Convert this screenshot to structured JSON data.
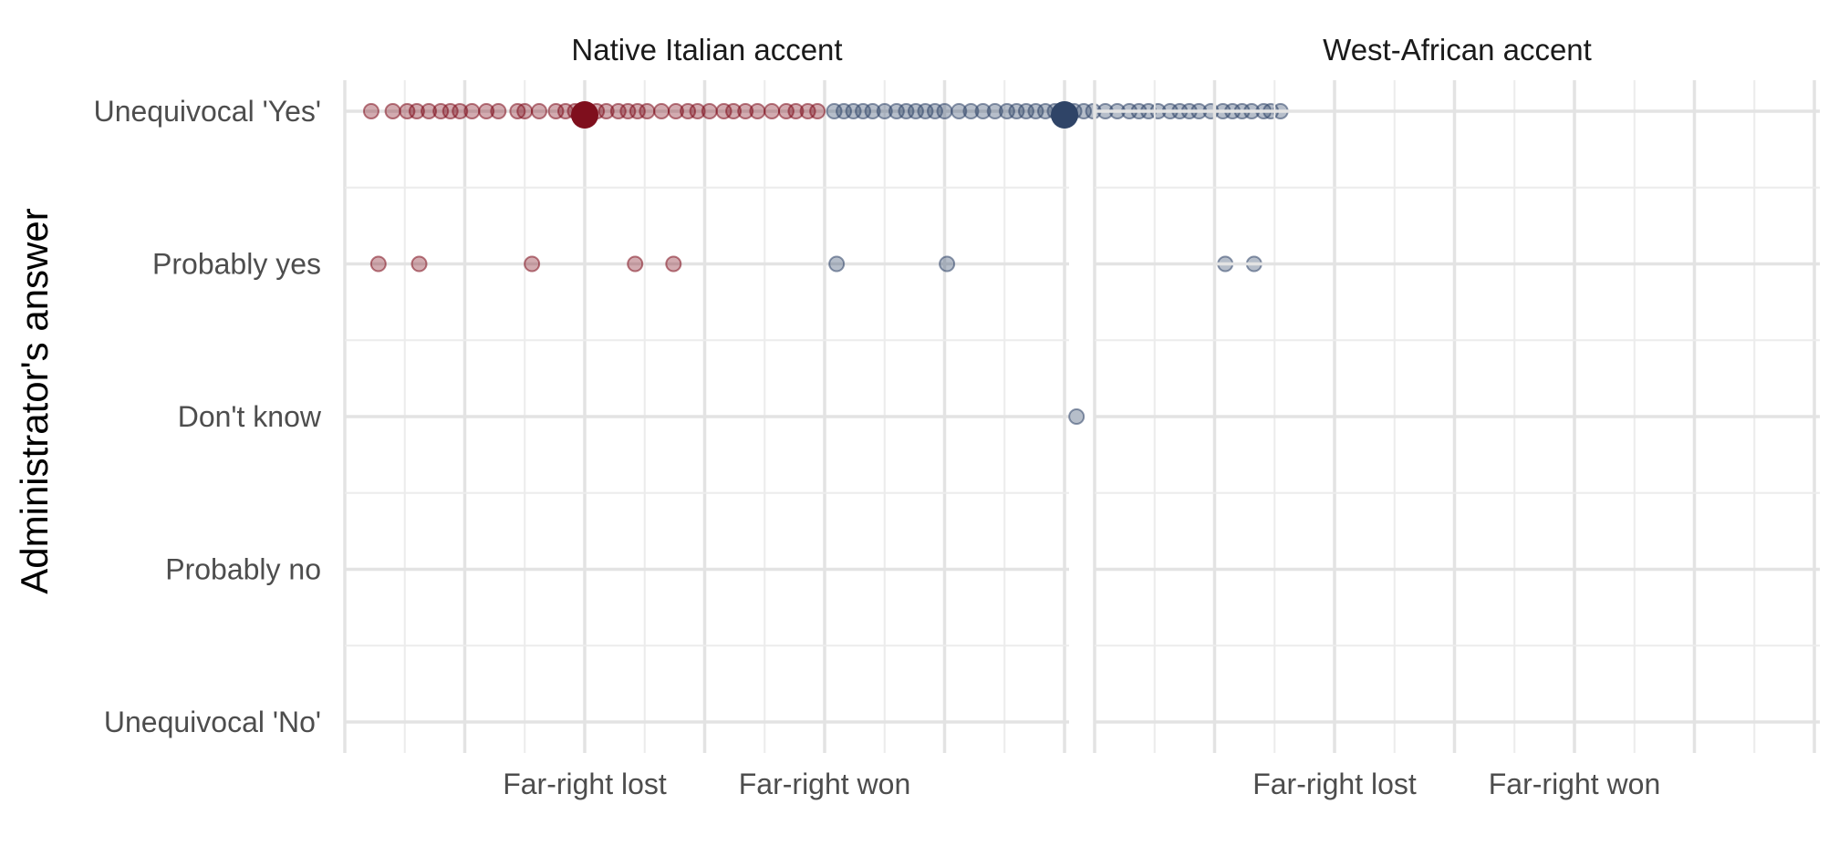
{
  "chart_data": {
    "type": "scatter",
    "ylabel": "Administrator's answer",
    "xlabel": "",
    "y_categories": [
      "Unequivocal 'No'",
      "Probably no",
      "Don't know",
      "Probably yes",
      "Unequivocal 'Yes'"
    ],
    "x_categories": [
      "Far-right lost",
      "Far-right won"
    ],
    "grid": true,
    "legend": "none",
    "colors": {
      "far_right_lost": "#7f0f1d",
      "far_right_won": "#2f4467"
    },
    "facets": [
      {
        "title": "Native Italian accent",
        "series": [
          {
            "group": "Far-right lost",
            "color": "#7f0f1d",
            "points": [
              {
                "x": -0.89,
                "y": "Unequivocal 'Yes'"
              },
              {
                "x": -0.8,
                "y": "Unequivocal 'Yes'"
              },
              {
                "x": -0.74,
                "y": "Unequivocal 'Yes'"
              },
              {
                "x": -0.7,
                "y": "Unequivocal 'Yes'"
              },
              {
                "x": -0.65,
                "y": "Unequivocal 'Yes'"
              },
              {
                "x": -0.6,
                "y": "Unequivocal 'Yes'"
              },
              {
                "x": -0.56,
                "y": "Unequivocal 'Yes'"
              },
              {
                "x": -0.52,
                "y": "Unequivocal 'Yes'"
              },
              {
                "x": -0.47,
                "y": "Unequivocal 'Yes'"
              },
              {
                "x": -0.41,
                "y": "Unequivocal 'Yes'"
              },
              {
                "x": -0.36,
                "y": "Unequivocal 'Yes'"
              },
              {
                "x": -0.28,
                "y": "Unequivocal 'Yes'"
              },
              {
                "x": -0.25,
                "y": "Unequivocal 'Yes'"
              },
              {
                "x": -0.19,
                "y": "Unequivocal 'Yes'"
              },
              {
                "x": -0.12,
                "y": "Unequivocal 'Yes'"
              },
              {
                "x": -0.08,
                "y": "Unequivocal 'Yes'"
              },
              {
                "x": -0.04,
                "y": "Unequivocal 'Yes'"
              },
              {
                "x": 0.0,
                "y": "Unequivocal 'Yes'"
              },
              {
                "x": 0.05,
                "y": "Unequivocal 'Yes'"
              },
              {
                "x": 0.09,
                "y": "Unequivocal 'Yes'"
              },
              {
                "x": 0.14,
                "y": "Unequivocal 'Yes'"
              },
              {
                "x": 0.18,
                "y": "Unequivocal 'Yes'"
              },
              {
                "x": 0.22,
                "y": "Unequivocal 'Yes'"
              },
              {
                "x": 0.26,
                "y": "Unequivocal 'Yes'"
              },
              {
                "x": 0.32,
                "y": "Unequivocal 'Yes'"
              },
              {
                "x": 0.38,
                "y": "Unequivocal 'Yes'"
              },
              {
                "x": 0.43,
                "y": "Unequivocal 'Yes'"
              },
              {
                "x": 0.47,
                "y": "Unequivocal 'Yes'"
              },
              {
                "x": 0.52,
                "y": "Unequivocal 'Yes'"
              },
              {
                "x": 0.58,
                "y": "Unequivocal 'Yes'"
              },
              {
                "x": 0.62,
                "y": "Unequivocal 'Yes'"
              },
              {
                "x": 0.67,
                "y": "Unequivocal 'Yes'"
              },
              {
                "x": 0.72,
                "y": "Unequivocal 'Yes'"
              },
              {
                "x": 0.78,
                "y": "Unequivocal 'Yes'"
              },
              {
                "x": 0.84,
                "y": "Unequivocal 'Yes'"
              },
              {
                "x": 0.88,
                "y": "Unequivocal 'Yes'"
              },
              {
                "x": 0.93,
                "y": "Unequivocal 'Yes'"
              },
              {
                "x": 0.97,
                "y": "Unequivocal 'Yes'"
              },
              {
                "x": -0.86,
                "y": "Probably yes"
              },
              {
                "x": -0.69,
                "y": "Probably yes"
              },
              {
                "x": -0.22,
                "y": "Probably yes"
              },
              {
                "x": 0.21,
                "y": "Probably yes"
              },
              {
                "x": 0.37,
                "y": "Probably yes"
              }
            ],
            "mean": {
              "x": 0.0,
              "y": "Unequivocal 'Yes'"
            }
          },
          {
            "group": "Far-right won",
            "color": "#2f4467",
            "points": [
              {
                "x": 1.04,
                "y": "Unequivocal 'Yes'"
              },
              {
                "x": 1.08,
                "y": "Unequivocal 'Yes'"
              },
              {
                "x": 1.12,
                "y": "Unequivocal 'Yes'"
              },
              {
                "x": 1.16,
                "y": "Unequivocal 'Yes'"
              },
              {
                "x": 1.2,
                "y": "Unequivocal 'Yes'"
              },
              {
                "x": 1.25,
                "y": "Unequivocal 'Yes'"
              },
              {
                "x": 1.3,
                "y": "Unequivocal 'Yes'"
              },
              {
                "x": 1.34,
                "y": "Unequivocal 'Yes'"
              },
              {
                "x": 1.38,
                "y": "Unequivocal 'Yes'"
              },
              {
                "x": 1.42,
                "y": "Unequivocal 'Yes'"
              },
              {
                "x": 1.46,
                "y": "Unequivocal 'Yes'"
              },
              {
                "x": 1.5,
                "y": "Unequivocal 'Yes'"
              },
              {
                "x": 1.56,
                "y": "Unequivocal 'Yes'"
              },
              {
                "x": 1.61,
                "y": "Unequivocal 'Yes'"
              },
              {
                "x": 1.66,
                "y": "Unequivocal 'Yes'"
              },
              {
                "x": 1.71,
                "y": "Unequivocal 'Yes'"
              },
              {
                "x": 1.76,
                "y": "Unequivocal 'Yes'"
              },
              {
                "x": 1.8,
                "y": "Unequivocal 'Yes'"
              },
              {
                "x": 1.84,
                "y": "Unequivocal 'Yes'"
              },
              {
                "x": 1.88,
                "y": "Unequivocal 'Yes'"
              },
              {
                "x": 1.92,
                "y": "Unequivocal 'Yes'"
              },
              {
                "x": 1.96,
                "y": "Unequivocal 'Yes'"
              },
              {
                "x": 2.0,
                "y": "Unequivocal 'Yes'"
              },
              {
                "x": 2.04,
                "y": "Unequivocal 'Yes'"
              },
              {
                "x": 2.08,
                "y": "Unequivocal 'Yes'"
              },
              {
                "x": 2.12,
                "y": "Unequivocal 'Yes'"
              },
              {
                "x": 2.17,
                "y": "Unequivocal 'Yes'"
              },
              {
                "x": 2.22,
                "y": "Unequivocal 'Yes'"
              },
              {
                "x": 2.27,
                "y": "Unequivocal 'Yes'"
              },
              {
                "x": 2.31,
                "y": "Unequivocal 'Yes'"
              },
              {
                "x": 2.35,
                "y": "Unequivocal 'Yes'"
              },
              {
                "x": 2.39,
                "y": "Unequivocal 'Yes'"
              },
              {
                "x": 2.44,
                "y": "Unequivocal 'Yes'"
              },
              {
                "x": 2.48,
                "y": "Unequivocal 'Yes'"
              },
              {
                "x": 2.52,
                "y": "Unequivocal 'Yes'"
              },
              {
                "x": 2.56,
                "y": "Unequivocal 'Yes'"
              },
              {
                "x": 2.61,
                "y": "Unequivocal 'Yes'"
              },
              {
                "x": 2.66,
                "y": "Unequivocal 'Yes'"
              },
              {
                "x": 2.7,
                "y": "Unequivocal 'Yes'"
              },
              {
                "x": 2.74,
                "y": "Unequivocal 'Yes'"
              },
              {
                "x": 2.78,
                "y": "Unequivocal 'Yes'"
              },
              {
                "x": 2.83,
                "y": "Unequivocal 'Yes'"
              },
              {
                "x": 2.86,
                "y": "Unequivocal 'Yes'"
              },
              {
                "x": 2.9,
                "y": "Unequivocal 'Yes'"
              },
              {
                "x": 1.05,
                "y": "Probably yes"
              },
              {
                "x": 1.51,
                "y": "Probably yes"
              },
              {
                "x": 2.67,
                "y": "Probably yes"
              },
              {
                "x": 2.79,
                "y": "Probably yes"
              },
              {
                "x": 2.05,
                "y": "Don't know"
              }
            ],
            "mean": {
              "x": 2.0,
              "y": "Unequivocal 'Yes'"
            }
          }
        ]
      },
      {
        "title": "West-African accent",
        "series": []
      }
    ]
  }
}
